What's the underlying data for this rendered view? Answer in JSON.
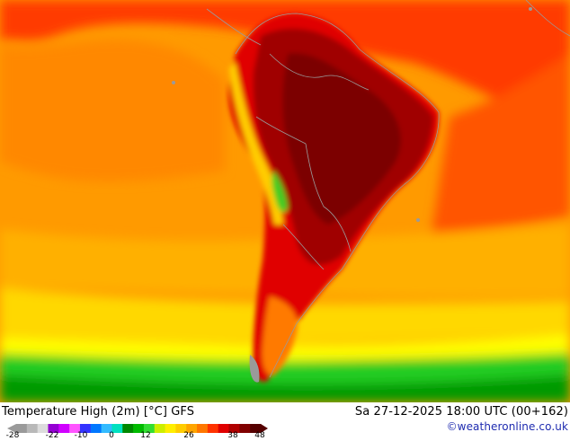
{
  "map": {
    "title": "Temperature High (2m) [°C] GFS",
    "valid_time": "Sa 27-12-2025 18:00 UTC (00+162)",
    "credit": "©weatheronline.co.uk",
    "region": "South America",
    "colors": {
      "ocean_warm": "#ff9a00",
      "ocean_hot": "#ff4d00",
      "hot_land": "#e00000",
      "very_hot_land": "#a00000",
      "extreme_land": "#7c0000",
      "mild": "#ffcc00",
      "cool": "#ffff00",
      "cold": "#22cc22",
      "very_cold": "#009900",
      "borders": "#9a9a9a"
    }
  },
  "legend": {
    "ticks": [
      "-28",
      "-22",
      "-10",
      "0",
      "12",
      "26",
      "38",
      "48"
    ],
    "colors": [
      "#9a9a9a",
      "#b8b8b8",
      "#dcdcdc",
      "#9400d3",
      "#d000ff",
      "#ff55ff",
      "#3333ff",
      "#0077ff",
      "#33bbff",
      "#00e0c0",
      "#008800",
      "#00bb00",
      "#33dd33",
      "#ccee00",
      "#ffee00",
      "#ffcc00",
      "#ffa500",
      "#ff7700",
      "#ff3300",
      "#e00000",
      "#b00000",
      "#800000",
      "#550000"
    ]
  }
}
